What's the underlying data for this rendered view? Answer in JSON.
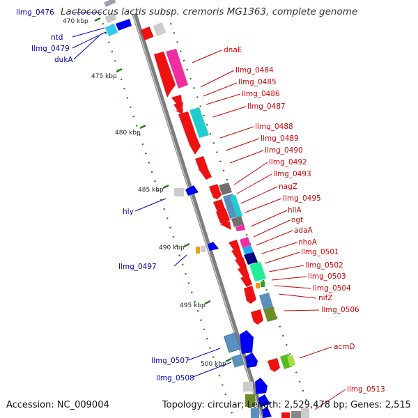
{
  "title": "Lactococcus lactis subsp. cremoris MG1363, complete genome",
  "footer": {
    "accession": "Accession: NC_009004",
    "stats": "Topology: circular; Length: 2,529,478 bp; Genes: 2,515"
  },
  "colors": {
    "backbone": "#888888",
    "tick": "#2e7d1e",
    "forward_label": "#cc0000",
    "reverse_label": "#0000aa",
    "callout": "#cc0000",
    "callout_rev": "#0000cc"
  },
  "scale_labels": [
    "470 kbp",
    "475 kbp",
    "480 kbp",
    "485 kbp",
    "490 kbp",
    "495 kbp",
    "500 kbp"
  ],
  "reverse_labels": [
    "llmg_0476",
    "ntd",
    "llmg_0479",
    "dukA",
    "hly",
    "llmg_0497",
    "llmg_0507",
    "llmg_0508"
  ],
  "forward_labels": [
    "dnaE",
    "llmg_0484",
    "llmg_0485",
    "llmg_0486",
    "llmg_0487",
    "llmg_0488",
    "llmg_0489",
    "llmg_0490",
    "llmg_0492",
    "llmg_0493",
    "nagZ",
    "llmg_0495",
    "hllA",
    "ogt",
    "adaA",
    "nhoA",
    "llmg_0501",
    "llmg_0502",
    "llmg_0503",
    "llmg_0504",
    "nifZ",
    "llmg_0506",
    "acmD",
    "llmg_0513"
  ]
}
